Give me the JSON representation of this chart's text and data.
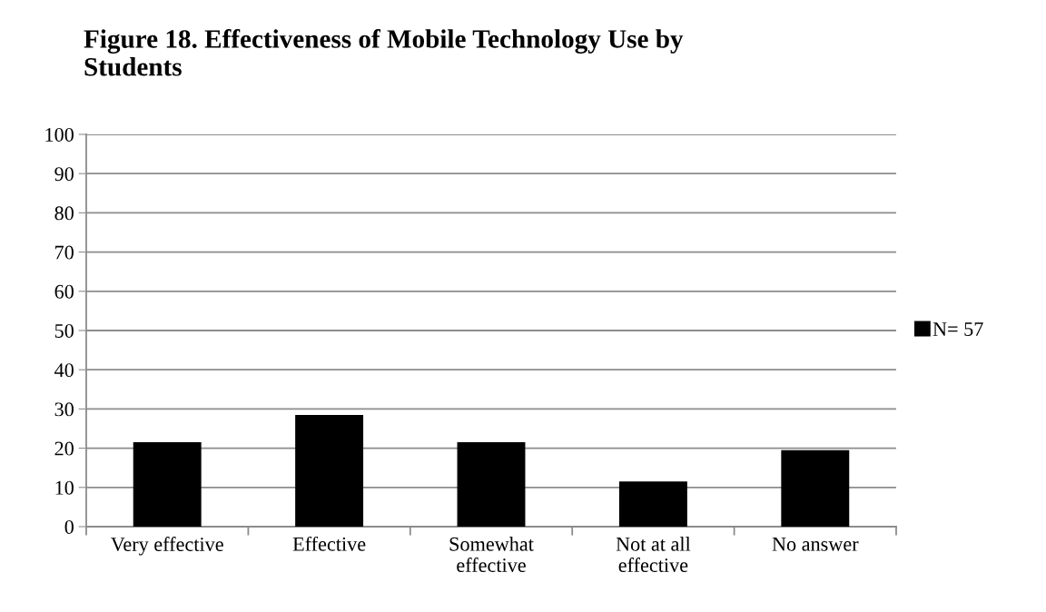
{
  "chart_data": {
    "type": "bar",
    "title": "Figure 18. Effectiveness of Mobile Technology Use by\nStudents",
    "categories": [
      "Very effective",
      "Effective",
      "Somewhat\neffective",
      "Not at all\neffective",
      "No answer"
    ],
    "series": [
      {
        "name": "N= 57",
        "color": "#000000",
        "values": [
          21.5,
          28.5,
          21.5,
          11.5,
          19.5
        ]
      }
    ],
    "ylim": [
      0,
      100
    ],
    "yticks": [
      0,
      10,
      20,
      30,
      40,
      50,
      60,
      70,
      80,
      90,
      100
    ],
    "grid": "y",
    "legend": "right"
  }
}
